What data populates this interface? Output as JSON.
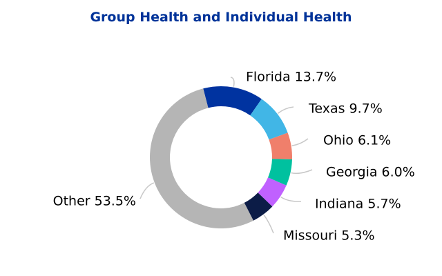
{
  "chart_data": {
    "type": "pie",
    "title": "Group Health and Individual Health",
    "title_color": "#003399",
    "donut": true,
    "slices": [
      {
        "label": "Florida",
        "value": 13.7,
        "value_label": "13.7%",
        "color": "#0033A0"
      },
      {
        "label": "Texas",
        "value": 9.7,
        "value_label": "9.7%",
        "color": "#41B6E6"
      },
      {
        "label": "Ohio",
        "value": 6.1,
        "value_label": "6.1%",
        "color": "#F07F6B"
      },
      {
        "label": "Georgia",
        "value": 6.0,
        "value_label": "6.0%",
        "color": "#00C19F"
      },
      {
        "label": "Indiana",
        "value": 5.7,
        "value_label": "5.7%",
        "color": "#C061FF"
      },
      {
        "label": "Missouri",
        "value": 5.3,
        "value_label": "5.3%",
        "color": "#0C1C47"
      },
      {
        "label": "Other",
        "value": 53.5,
        "value_label": "53.5%",
        "color": "#B5B5B5"
      }
    ],
    "leader_line_color": "#C8C8C8"
  }
}
